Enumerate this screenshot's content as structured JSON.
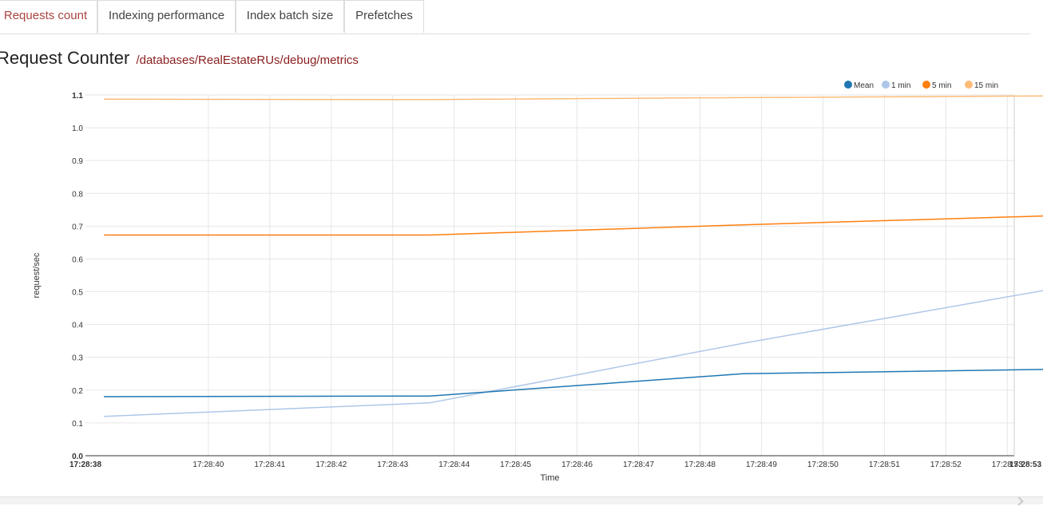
{
  "tabs": [
    {
      "label": "Requests count",
      "active": true
    },
    {
      "label": "Indexing performance",
      "active": false
    },
    {
      "label": "Index batch size",
      "active": false
    },
    {
      "label": "Prefetches",
      "active": false
    }
  ],
  "header": {
    "title": "Request Counter",
    "path": "/databases/RealEstateRUs/debug/metrics"
  },
  "chart_data": {
    "type": "line",
    "xlabel": "Time",
    "ylabel": "request/sec",
    "ylim": [
      0,
      1.1
    ],
    "yticks": [
      "0.0",
      "0.1",
      "0.2",
      "0.3",
      "0.4",
      "0.5",
      "0.6",
      "0.7",
      "0.8",
      "0.9",
      "1.0",
      "1.1"
    ],
    "x_start_label": "17:28:38",
    "x_end_label": "17:28:53",
    "xticks": [
      "17:28:40",
      "17:28:41",
      "17:28:42",
      "17:28:43",
      "17:28:44",
      "17:28:45",
      "17:28:46",
      "17:28:47",
      "17:28:48",
      "17:28:49",
      "17:28:50",
      "17:28:51",
      "17:28:52",
      "17:28:53"
    ],
    "x": [
      "17:28:38.3",
      "17:28:43.6",
      "17:28:48.7",
      "17:28:53.6"
    ],
    "legend_position": "top-right",
    "grid": true,
    "series": [
      {
        "name": "Mean",
        "color": "#1f77b4",
        "values": [
          0.18,
          0.182,
          0.25,
          0.263
        ]
      },
      {
        "name": "1 min",
        "color": "#aec7e8",
        "values": [
          0.12,
          0.161,
          0.343,
          0.504
        ]
      },
      {
        "name": "5 min",
        "color": "#ff7f0e",
        "values": [
          0.673,
          0.673,
          0.704,
          0.731
        ]
      },
      {
        "name": "15 min",
        "color": "#ffbb78",
        "values": [
          1.087,
          1.086,
          1.092,
          1.097
        ]
      }
    ]
  }
}
